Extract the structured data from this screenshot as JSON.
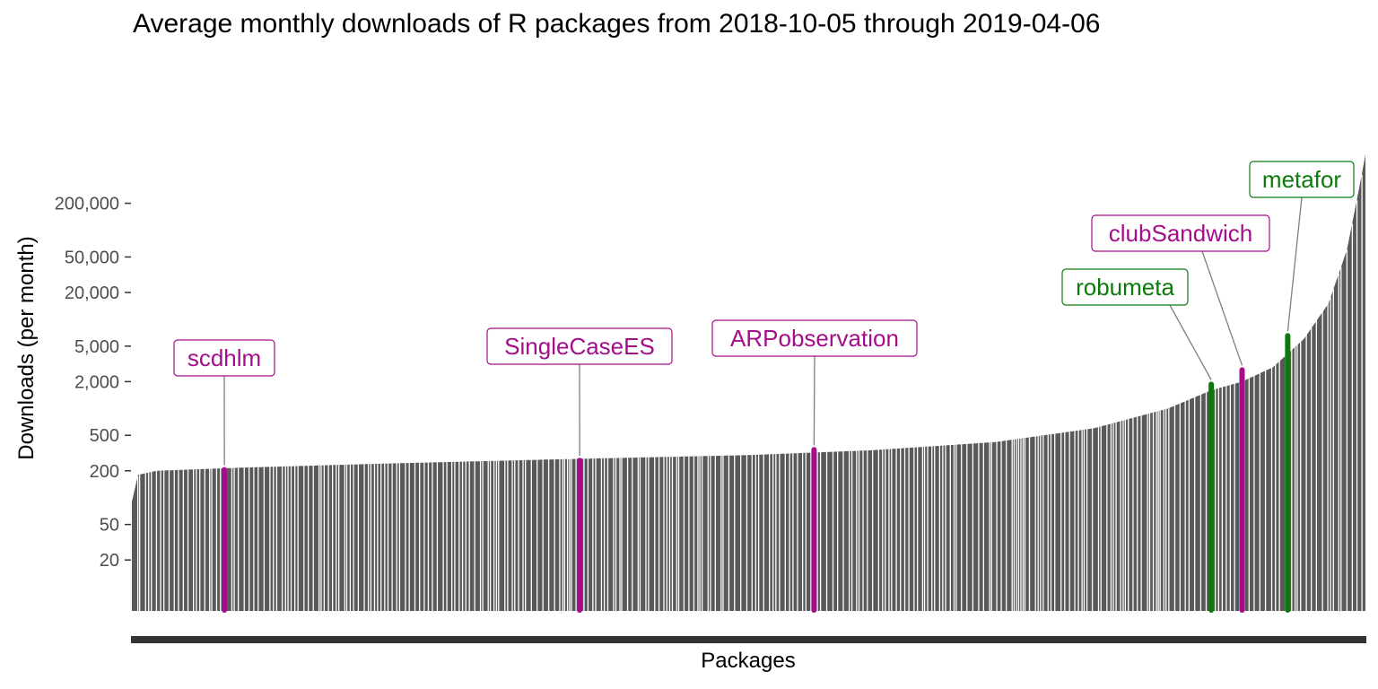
{
  "chart_data": {
    "type": "bar",
    "title": "Average monthly downloads of R packages from 2018-10-05 through 2019-04-06",
    "xlabel": "Packages",
    "ylabel": "Downloads (per month)",
    "y_scale": "log",
    "ylim": [
      2,
      1000000
    ],
    "y_ticks": [
      {
        "value": 20,
        "label": "20"
      },
      {
        "value": 50,
        "label": "50"
      },
      {
        "value": 200,
        "label": "200"
      },
      {
        "value": 500,
        "label": "500"
      },
      {
        "value": 2000,
        "label": "2,000"
      },
      {
        "value": 5000,
        "label": "5,000"
      },
      {
        "value": 20000,
        "label": "20,000"
      },
      {
        "value": 50000,
        "label": "50,000"
      },
      {
        "value": 200000,
        "label": "200,000"
      }
    ],
    "distribution_curve": {
      "description_points": [
        [
          0,
          90
        ],
        [
          0.005,
          180
        ],
        [
          0.02,
          200
        ],
        [
          0.08,
          215
        ],
        [
          0.2,
          240
        ],
        [
          0.35,
          270
        ],
        [
          0.5,
          300
        ],
        [
          0.6,
          340
        ],
        [
          0.7,
          420
        ],
        [
          0.78,
          600
        ],
        [
          0.84,
          1000
        ],
        [
          0.875,
          1600
        ],
        [
          0.9,
          2000
        ],
        [
          0.925,
          2900
        ],
        [
          0.95,
          6000
        ],
        [
          0.97,
          15000
        ],
        [
          0.985,
          60000
        ],
        [
          0.995,
          300000
        ],
        [
          1.0,
          700000
        ]
      ],
      "bar_color": "#595959",
      "gap_color": "#ffffff"
    },
    "highlighted": [
      {
        "name": "scdhlm",
        "position": 0.075,
        "value": 220,
        "color": "#A40E8A"
      },
      {
        "name": "SingleCaseES",
        "position": 0.363,
        "value": 280,
        "color": "#A40E8A"
      },
      {
        "name": "ARPobservation",
        "position": 0.553,
        "value": 370,
        "color": "#A40E8A"
      },
      {
        "name": "robumeta",
        "position": 0.875,
        "value": 2000,
        "color": "#0B7A0B"
      },
      {
        "name": "clubSandwich",
        "position": 0.9,
        "value": 2900,
        "color": "#A40E8A"
      },
      {
        "name": "metafor",
        "position": 0.937,
        "value": 7000,
        "color": "#0B7A0B"
      }
    ],
    "legend": "none",
    "grid": false
  }
}
